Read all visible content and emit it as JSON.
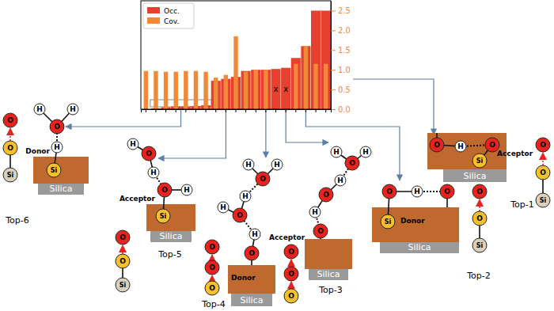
{
  "chart_data": {
    "type": "bar",
    "categories": [
      null,
      null,
      null,
      null,
      null,
      null,
      null,
      null,
      null,
      null,
      null,
      null,
      null,
      null,
      null,
      null,
      null,
      null,
      null
    ],
    "series": [
      {
        "name": "Occ.",
        "color": "#e8402e",
        "values": [
          0.0,
          0.02,
          0.05,
          0.07,
          0.07,
          0.08,
          0.1,
          0.72,
          0.77,
          0.82,
          0.97,
          1.0,
          1.0,
          1.02,
          1.05,
          1.3,
          1.6,
          2.5,
          2.5
        ]
      },
      {
        "name": "Cov.",
        "color": "#f08a38",
        "values": [
          0.97,
          0.97,
          0.95,
          0.95,
          0.97,
          0.97,
          0.95,
          0.8,
          0.87,
          1.85,
          0.95,
          1.0,
          1.0,
          null,
          null,
          1.15,
          1.6,
          1.15,
          1.15
        ]
      }
    ],
    "ylim": [
      0,
      2.75
    ],
    "yticks": [
      {
        "value": 0,
        "label": "0.0"
      },
      {
        "value": 0.5,
        "label": "0.5"
      },
      {
        "value": 1,
        "label": "1.0"
      },
      {
        "value": 1.5,
        "label": "1.5"
      },
      {
        "value": 2,
        "label": "2.0"
      },
      {
        "value": 2.5,
        "label": "2.5"
      }
    ],
    "legend": "upper left",
    "tick_labels": "y",
    "annotations": [
      {
        "text": "x",
        "category": 13,
        "y": 0.5
      },
      {
        "text": "x",
        "category": 14,
        "y": 0.5
      }
    ]
  },
  "diagram": {
    "symbols": {
      "oxygen": "O",
      "hydrogen": "H",
      "silicon": "Si"
    },
    "substrate": "Silica",
    "panels": [
      {
        "title": "Top-1",
        "role": "Acceptor"
      },
      {
        "title": "Top-2",
        "role": "Donor"
      },
      {
        "title": "Top-3",
        "role": "Acceptor"
      },
      {
        "title": "Top-4",
        "role": "Donor"
      },
      {
        "title": "Top-5",
        "role": "Acceptor"
      },
      {
        "title": "Top-6",
        "role": "Donor"
      }
    ]
  }
}
